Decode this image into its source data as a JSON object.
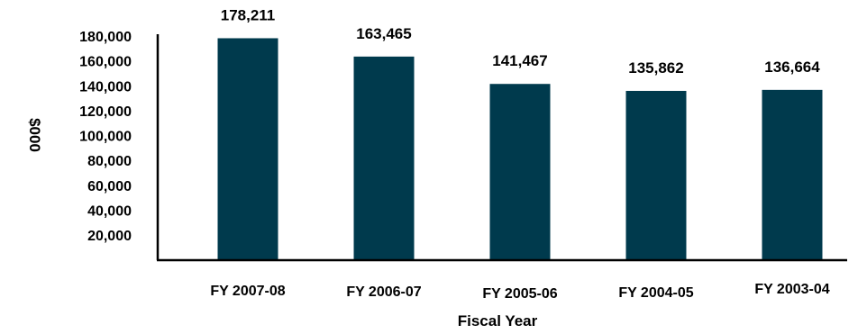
{
  "chart_data": {
    "type": "bar",
    "title": "",
    "xlabel": "Fiscal Year",
    "ylabel": "$000",
    "categories": [
      "FY 2007-08",
      "FY 2006-07",
      "FY 2005-06",
      "FY 2004-05",
      "FY 2003-04"
    ],
    "values": [
      178211,
      163465,
      141467,
      135862,
      136664
    ],
    "value_labels": [
      "178,211",
      "163,465",
      "141,467",
      "135,862",
      "136,664"
    ],
    "y_ticks": [
      20000,
      40000,
      60000,
      80000,
      100000,
      120000,
      140000,
      160000,
      180000
    ],
    "y_tick_labels": [
      "20,000",
      "40,000",
      "60,000",
      "80,000",
      "100,000",
      "120,000",
      "140,000",
      "160,000",
      "180,000"
    ],
    "ylim": [
      0,
      180000
    ],
    "grid": false,
    "legend": "none",
    "bar_color": "#003a4d"
  }
}
